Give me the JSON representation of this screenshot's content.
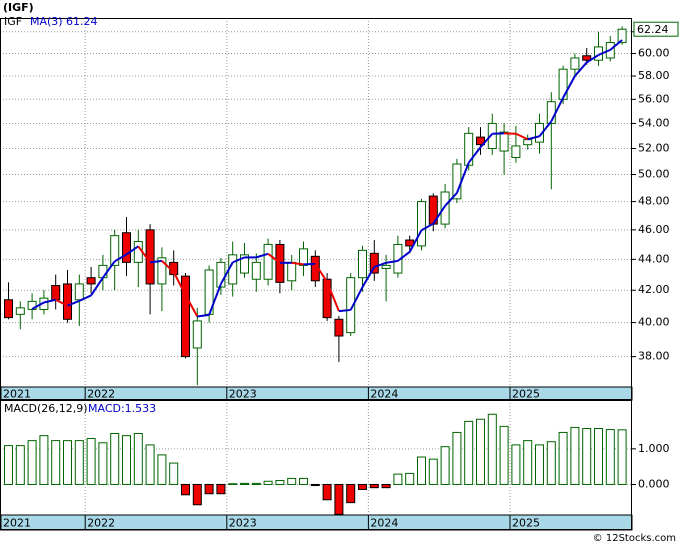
{
  "chart_data": [
    {
      "type": "candlestick",
      "title": "(IGF)",
      "name": "IGF",
      "categories": [
        "2021",
        null,
        null,
        null,
        null,
        null,
        null,
        "2022",
        null,
        null,
        null,
        null,
        null,
        null,
        null,
        null,
        null,
        null,
        null,
        "2023",
        null,
        null,
        null,
        null,
        null,
        null,
        null,
        null,
        null,
        null,
        null,
        "2024",
        null,
        null,
        null,
        null,
        null,
        null,
        null,
        null,
        null,
        null,
        null,
        "2025",
        null,
        null,
        null,
        null,
        null,
        null,
        null,
        null,
        null
      ],
      "open": [
        41.4,
        40.5,
        40.8,
        40.8,
        42.3,
        42.4,
        41.4,
        42.8,
        42.8,
        43.6,
        45.8,
        43.8,
        46.0,
        42.4,
        43.8,
        42.9,
        38.5,
        40.5,
        42.2,
        42.4,
        43.1,
        42.7,
        42.7,
        45.0,
        42.6,
        43.6,
        44.2,
        42.7,
        40.2,
        39.4,
        42.8,
        44.4,
        43.4,
        43.1,
        45.3,
        44.9,
        48.4,
        46.4,
        48.2,
        50.7,
        52.9,
        52.0,
        51.8,
        51.3,
        52.3,
        52.5,
        54.0,
        56.0,
        58.6,
        59.8,
        59.4,
        59.6,
        61.0
      ],
      "high": [
        42.5,
        41.3,
        41.8,
        42.0,
        43.0,
        43.3,
        43.0,
        43.5,
        44.3,
        46.0,
        46.9,
        46.0,
        46.4,
        44.8,
        44.6,
        43.1,
        40.9,
        43.6,
        44.1,
        45.2,
        45.1,
        44.4,
        45.4,
        45.3,
        44.3,
        45.2,
        44.6,
        43.1,
        40.4,
        43.1,
        44.9,
        45.3,
        44.3,
        45.6,
        45.6,
        48.2,
        48.6,
        49.3,
        51.2,
        53.7,
        53.7,
        54.8,
        54.0,
        53.8,
        53.1,
        54.8,
        56.6,
        58.9,
        60.0,
        60.5,
        62.0,
        61.6,
        62.5
      ],
      "low": [
        40.2,
        39.6,
        40.2,
        40.5,
        40.8,
        40.0,
        39.8,
        41.8,
        42.0,
        42.0,
        42.9,
        42.2,
        40.5,
        40.7,
        42.3,
        37.9,
        36.4,
        40.0,
        41.7,
        41.6,
        42.8,
        41.9,
        42.3,
        41.8,
        42.0,
        42.9,
        42.2,
        40.1,
        37.7,
        39.2,
        41.9,
        42.6,
        41.3,
        42.8,
        44.4,
        44.6,
        45.9,
        46.1,
        47.9,
        50.3,
        51.5,
        51.5,
        50.0,
        50.9,
        51.9,
        51.6,
        48.9,
        55.6,
        57.9,
        59.0,
        58.9,
        59.3,
        60.8
      ],
      "close": [
        40.3,
        40.9,
        41.3,
        41.5,
        41.4,
        40.2,
        42.4,
        42.4,
        43.6,
        45.6,
        43.8,
        45.2,
        42.4,
        44.1,
        43.0,
        38.0,
        40.1,
        43.3,
        43.8,
        44.3,
        44.3,
        43.8,
        45.0,
        42.5,
        43.8,
        44.7,
        42.6,
        40.3,
        39.2,
        42.8,
        44.6,
        43.1,
        43.6,
        45.0,
        44.9,
        48.0,
        46.4,
        48.7,
        50.8,
        53.2,
        52.3,
        54.0,
        53.3,
        52.2,
        52.7,
        54.0,
        55.8,
        58.6,
        59.6,
        59.4,
        60.6,
        61.0,
        62.24
      ],
      "up_color": "#006400",
      "down_color": "#ee0000",
      "ma": {
        "name": "MA(3)",
        "rising_color": "#0000cc",
        "falling_color": "#ee0000",
        "values": [
          null,
          null,
          40.83,
          41.23,
          41.4,
          41.03,
          41.33,
          41.67,
          42.8,
          43.87,
          44.33,
          44.87,
          43.8,
          43.9,
          43.17,
          41.7,
          40.37,
          40.47,
          42.4,
          43.8,
          44.13,
          44.13,
          44.37,
          43.77,
          43.77,
          43.67,
          43.7,
          42.53,
          40.7,
          40.77,
          42.2,
          43.5,
          43.77,
          43.9,
          44.5,
          45.97,
          46.43,
          47.7,
          48.63,
          50.9,
          52.1,
          53.17,
          53.2,
          53.17,
          52.73,
          52.97,
          54.17,
          56.13,
          58.0,
          59.2,
          59.87,
          60.33,
          61.24
        ]
      },
      "log_scale": true,
      "grid": true,
      "ylim": [
        36.3,
        63.3
      ],
      "yticks": [
        {
          "value": 38,
          "label": "38.00"
        },
        {
          "value": 40,
          "label": "40.00"
        },
        {
          "value": 42,
          "label": "42.00"
        },
        {
          "value": 44,
          "label": "44.00"
        },
        {
          "value": 46,
          "label": "46.00"
        },
        {
          "value": 48,
          "label": "48.00"
        },
        {
          "value": 50,
          "label": "50.00"
        },
        {
          "value": 52,
          "label": "52.00"
        },
        {
          "value": 54,
          "label": "54.00"
        },
        {
          "value": 56,
          "label": "56.00"
        },
        {
          "value": 58,
          "label": "58.00"
        },
        {
          "value": 60,
          "label": "60.00"
        },
        {
          "value": 62,
          "label": "62.00"
        }
      ]
    },
    {
      "type": "bar",
      "title": "MACD(26,12,9)",
      "value_text": "MACD:1.533",
      "categories": [
        "2021",
        null,
        null,
        null,
        null,
        null,
        null,
        "2022",
        null,
        null,
        null,
        null,
        null,
        null,
        null,
        null,
        null,
        null,
        null,
        "2023",
        null,
        null,
        null,
        null,
        null,
        null,
        null,
        null,
        null,
        null,
        null,
        "2024",
        null,
        null,
        null,
        null,
        null,
        null,
        null,
        null,
        null,
        null,
        null,
        "2025",
        null,
        null,
        null,
        null,
        null,
        null,
        null,
        null,
        null
      ],
      "values": [
        1.09,
        1.09,
        1.23,
        1.37,
        1.23,
        1.23,
        1.23,
        1.29,
        1.17,
        1.43,
        1.37,
        1.43,
        1.11,
        0.83,
        0.6,
        -0.29,
        -0.57,
        -0.26,
        -0.26,
        0.02,
        0.03,
        0.03,
        0.09,
        0.11,
        0.17,
        0.17,
        -0.03,
        -0.43,
        -0.84,
        -0.51,
        -0.14,
        -0.09,
        -0.09,
        0.29,
        0.31,
        0.77,
        0.71,
        1.06,
        1.46,
        1.77,
        1.83,
        1.97,
        1.63,
        1.11,
        1.23,
        1.11,
        1.2,
        1.46,
        1.6,
        1.57,
        1.57,
        1.54,
        1.533
      ],
      "up_color": "#006400",
      "down_color": "#ee0000",
      "grid": true,
      "ylim": [
        -0.857,
        2.37
      ],
      "yticks": [
        {
          "value": 0,
          "label": "0.000"
        },
        {
          "value": 1,
          "label": "1.000"
        }
      ]
    }
  ],
  "footer": "© 12Stocks.com"
}
